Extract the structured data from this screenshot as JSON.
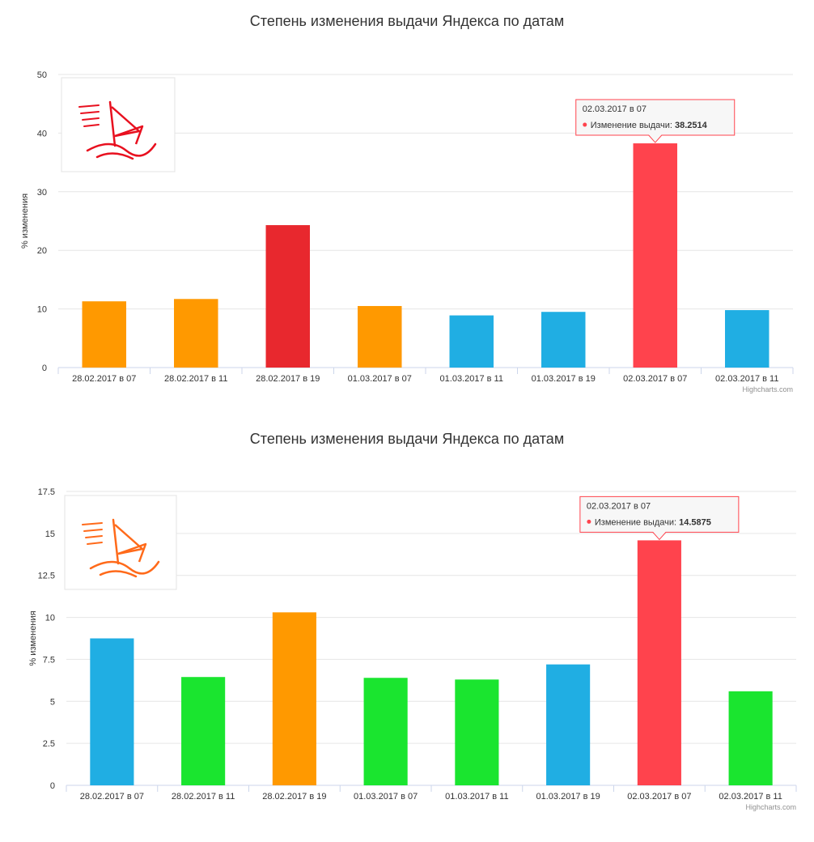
{
  "chart_data": [
    {
      "type": "bar",
      "title": "Степень изменения выдачи Яндекса по датам",
      "ylabel": "% изменения",
      "xlabel": "",
      "ylim": [
        0,
        50
      ],
      "yticks": [
        "0",
        "10",
        "20",
        "30",
        "40",
        "50"
      ],
      "ytick_values": [
        0,
        10,
        20,
        30,
        40,
        50
      ],
      "grid": true,
      "categories": [
        "28.02.2017 в 07",
        "28.02.2017 в 11",
        "28.02.2017 в 19",
        "01.03.2017 в 07",
        "01.03.2017 в 11",
        "01.03.2017 в 19",
        "02.03.2017 в 07",
        "02.03.2017 в 11"
      ],
      "values": [
        11.3,
        11.7,
        24.3,
        10.5,
        8.9,
        9.5,
        38.2514,
        9.8
      ],
      "colors": [
        "#ff9900",
        "#ff9900",
        "#e8282e",
        "#ff9900",
        "#20aee3",
        "#20aee3",
        "#ff434d",
        "#20aee3"
      ],
      "tooltip": {
        "date": "02.03.2017 в 07",
        "label": "Изменение выдачи:",
        "value": "38.2514",
        "index": 6
      },
      "credits": "Highcharts.com",
      "logo_color": "#e8101f"
    },
    {
      "type": "bar",
      "title": "Степень изменения выдачи Яндекса по датам",
      "ylabel": "% изменения",
      "xlabel": "",
      "ylim": [
        0,
        17.5
      ],
      "yticks": [
        "0",
        "2.5",
        "5",
        "7.5",
        "10",
        "12.5",
        "15",
        "17.5"
      ],
      "ytick_values": [
        0,
        2.5,
        5,
        7.5,
        10,
        12.5,
        15,
        17.5
      ],
      "grid": true,
      "categories": [
        "28.02.2017 в 07",
        "28.02.2017 в 11",
        "28.02.2017 в 19",
        "01.03.2017 в 07",
        "01.03.2017 в 11",
        "01.03.2017 в 19",
        "02.03.2017 в 07",
        "02.03.2017 в 11"
      ],
      "values": [
        8.75,
        6.45,
        10.3,
        6.4,
        6.3,
        7.2,
        14.5875,
        5.6
      ],
      "colors": [
        "#20aee3",
        "#1ae52f",
        "#ff9900",
        "#1ae52f",
        "#1ae52f",
        "#20aee3",
        "#ff434d",
        "#1ae52f"
      ],
      "tooltip": {
        "date": "02.03.2017 в 07",
        "label": "Изменение выдачи:",
        "value": "14.5875",
        "index": 6
      },
      "credits": "Highcharts.com",
      "logo_color": "#ff6a1a"
    }
  ]
}
